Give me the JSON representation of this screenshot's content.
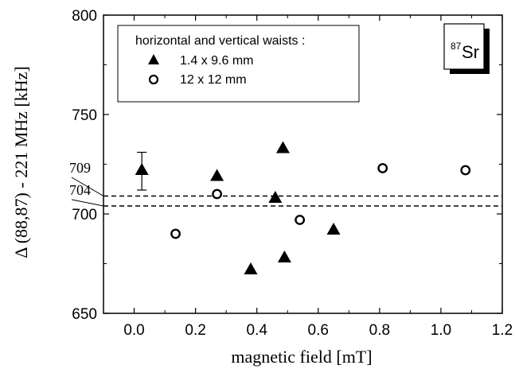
{
  "chart_data": {
    "type": "scatter",
    "title": "",
    "xlabel": "magnetic field [mT]",
    "ylabel": "Δ (88,87) - 221 MHz   [kHz]",
    "xlim": [
      -0.1,
      1.2
    ],
    "ylim": [
      650,
      800
    ],
    "xticks": [
      "0.0",
      "0.2",
      "0.4",
      "0.6",
      "0.8",
      "1.0",
      "1.2"
    ],
    "xtick_values": [
      0.0,
      0.2,
      0.4,
      0.6,
      0.8,
      1.0,
      1.2
    ],
    "yticks": [
      "650",
      "700",
      "750",
      "800"
    ],
    "ytick_values": [
      650,
      700,
      750,
      800
    ],
    "grid": false,
    "legend_position": "top-left",
    "legend_title": "horizontal and vertical waists :",
    "badge": {
      "mass": "87",
      "element": "Sr"
    },
    "series": [
      {
        "name": "1.4 x 9.6 mm",
        "marker": "filled-triangle",
        "x": [
          0.025,
          0.27,
          0.38,
          0.46,
          0.485,
          0.49,
          0.65
        ],
        "y": [
          722,
          719,
          672,
          708,
          733,
          678,
          692
        ],
        "error_bar": {
          "x": 0.025,
          "low": 712,
          "high": 731
        }
      },
      {
        "name": "12 x 12 mm",
        "marker": "open-circle",
        "x": [
          0.135,
          0.27,
          0.54,
          0.81,
          1.08
        ],
        "y": [
          690,
          710,
          697,
          723,
          722
        ]
      }
    ],
    "reference_lines": [
      {
        "label": "709",
        "value": 709,
        "style": "dashed"
      },
      {
        "label": "704",
        "value": 704,
        "style": "dashed"
      }
    ],
    "colors": {
      "foreground": "#000000",
      "background": "#ffffff"
    }
  }
}
